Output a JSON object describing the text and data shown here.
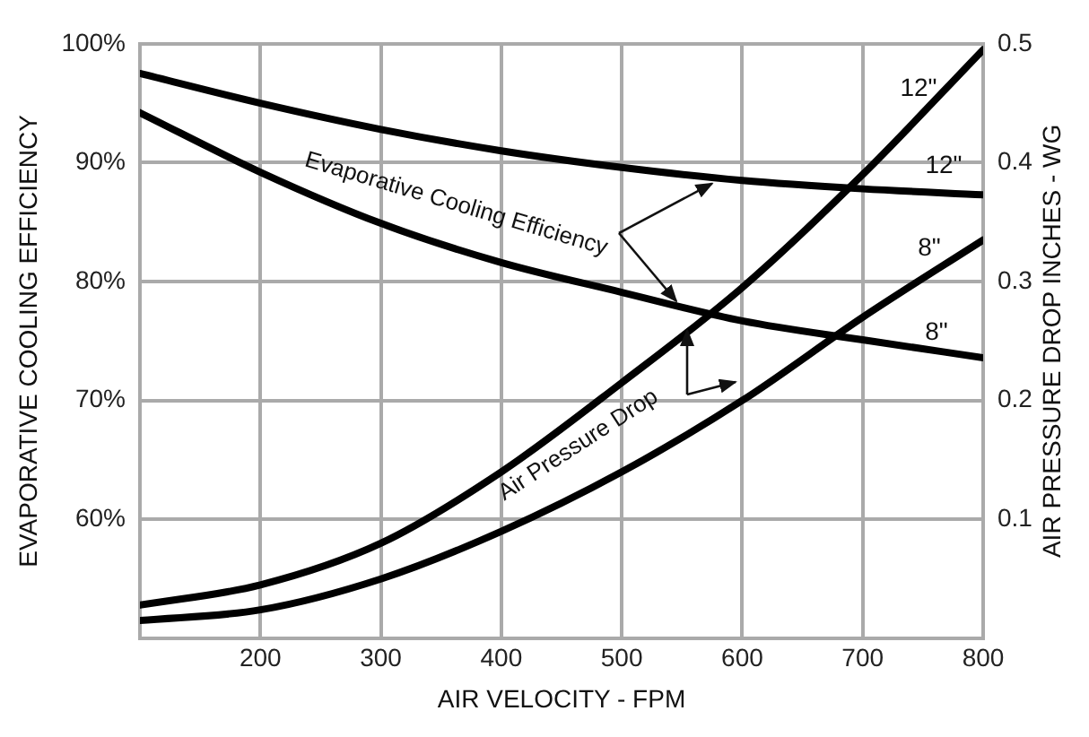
{
  "chart_data": {
    "type": "line",
    "xlabel": "AIR VELOCITY - FPM",
    "ylabel": "EVAPORATIVE COOLING EFFICIENCY",
    "y2label": "AIR PRESSURE DROP INCHES - WG",
    "annotations": [
      {
        "text": "Evaporative Cooling Efficiency",
        "x": 575,
        "y": 88.7
      },
      "Air Pressure Drop"
    ],
    "x": [
      100,
      200,
      300,
      400,
      500,
      600,
      700,
      800
    ],
    "series": [
      {
        "name": "12\"",
        "color": "#000000",
        "values": [
          97.5,
          95.0,
          92.8,
          91.0,
          89.6,
          88.5,
          87.8,
          87.3
        ]
      },
      {
        "name": "8\"",
        "color": "#000000",
        "values": [
          94.2,
          89.2,
          84.9,
          81.6,
          79.1,
          76.7,
          75.1,
          73.6
        ]
      },
      {
        "name": "12\"",
        "color": "#000000",
        "axis": "y2",
        "values": [
          0.028,
          0.045,
          0.08,
          0.14,
          0.215,
          0.295,
          0.39,
          0.495
        ]
      },
      {
        "name": "8\"",
        "color": "#000000",
        "axis": "y2",
        "values": [
          0.015,
          0.024,
          0.05,
          0.09,
          0.14,
          0.2,
          0.27,
          0.335
        ]
      }
    ],
    "xlim": [
      100,
      800
    ],
    "xticks": [
      200,
      300,
      400,
      500,
      600,
      700,
      800
    ],
    "ylim": [
      50,
      100
    ],
    "yticks": [
      {
        "value": 60,
        "label": "60%"
      },
      {
        "value": 70,
        "label": "70%"
      },
      {
        "value": 80,
        "label": "80%"
      },
      {
        "value": 90,
        "label": "90%"
      },
      {
        "value": 100,
        "label": "100%"
      }
    ],
    "y2lim": [
      0,
      0.5
    ],
    "y2ticks": [
      0.1,
      0.2,
      0.3,
      0.4,
      0.5
    ],
    "grid": true,
    "legend": false,
    "marker": "none",
    "line_style": "solid"
  }
}
